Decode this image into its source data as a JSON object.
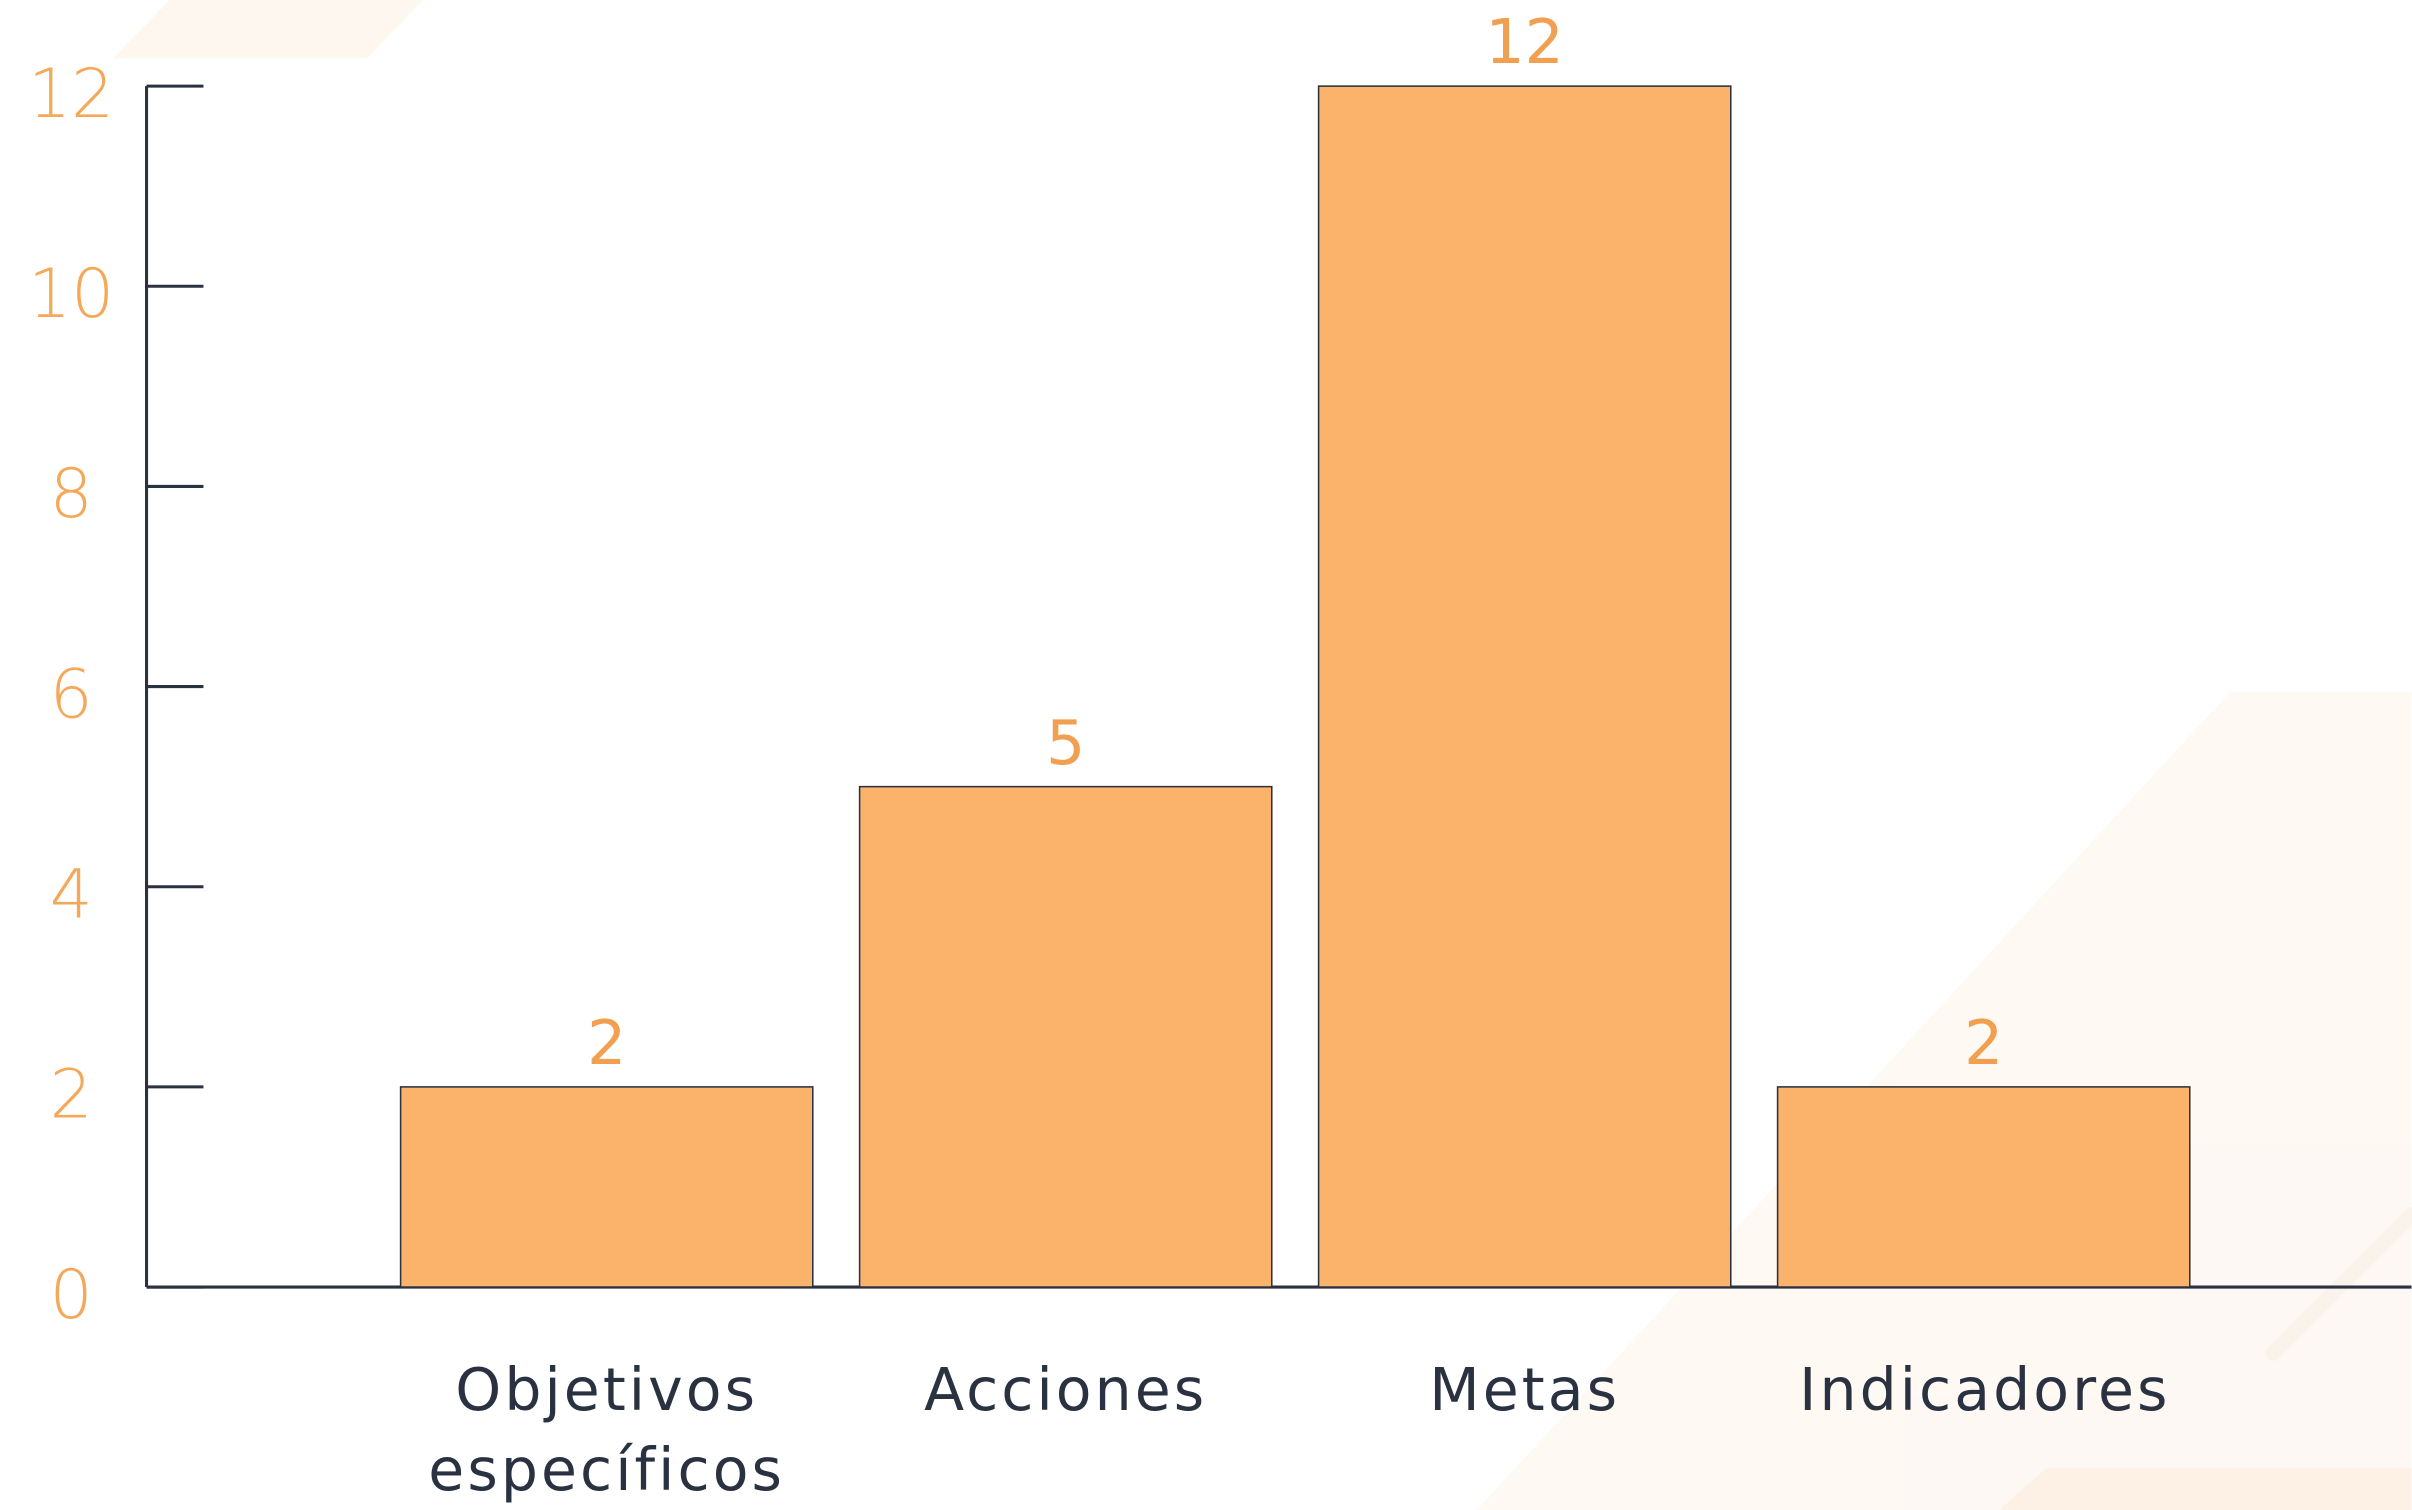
{
  "chart_data": {
    "type": "bar",
    "categories": [
      "Objetivos específicos",
      "Acciones",
      "Metas",
      "Indicadores"
    ],
    "values": [
      2,
      5,
      12,
      2
    ],
    "color": "#fbb26a",
    "ylim": [
      0,
      12
    ],
    "yticks": [
      0,
      2,
      4,
      6,
      8,
      10,
      12
    ]
  }
}
